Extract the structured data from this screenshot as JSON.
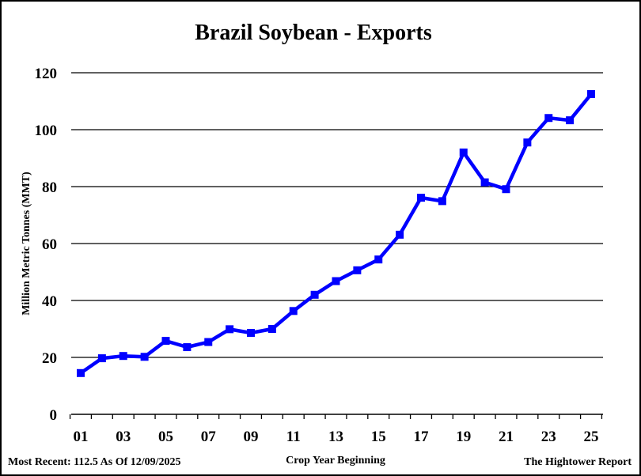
{
  "chart_data": {
    "type": "line",
    "title": "Brazil Soybean - Exports",
    "xlabel": "Crop Year Beginning",
    "ylabel": "Million Metric Tonnes (MMT)",
    "ylim": [
      0,
      120
    ],
    "yticks": [
      0,
      20,
      40,
      60,
      80,
      100,
      120
    ],
    "grid": true,
    "categories": [
      "01",
      "02",
      "03",
      "04",
      "05",
      "06",
      "07",
      "08",
      "09",
      "10",
      "11",
      "12",
      "13",
      "14",
      "15",
      "16",
      "17",
      "18",
      "19",
      "20",
      "21",
      "22",
      "23",
      "24",
      "25"
    ],
    "xtick_labels": [
      "01",
      "03",
      "05",
      "07",
      "09",
      "11",
      "13",
      "15",
      "17",
      "19",
      "21",
      "23",
      "25"
    ],
    "series": [
      {
        "color": "#0000ff",
        "marker": "square",
        "values": [
          14.5,
          19.7,
          20.5,
          20.2,
          25.8,
          23.6,
          25.4,
          29.9,
          28.6,
          30.0,
          36.3,
          42.0,
          46.8,
          50.6,
          54.4,
          63.1,
          76.1,
          74.9,
          92.0,
          81.5,
          79.1,
          95.5,
          104.1,
          103.3,
          112.5
        ]
      }
    ]
  },
  "footer": {
    "left": "Most Recent: 112.5 As Of 12/09/2025",
    "right": "The Hightower Report"
  }
}
